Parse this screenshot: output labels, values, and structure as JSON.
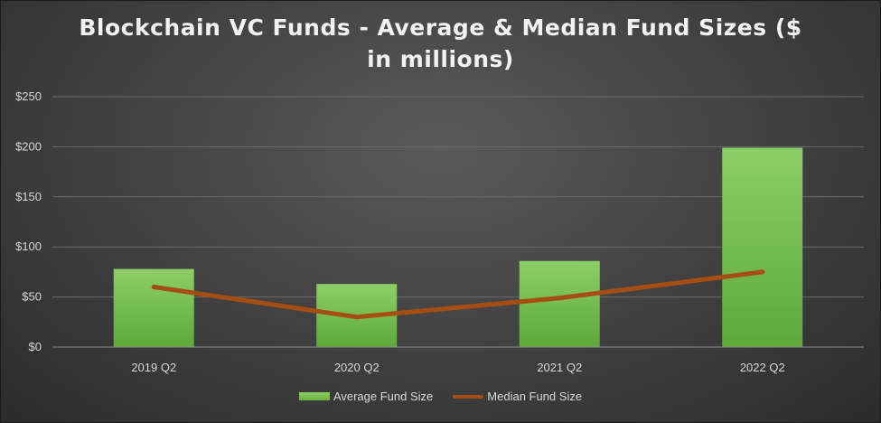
{
  "chart_data": {
    "type": "bar",
    "title_lines": [
      "Blockchain VC Funds - Average & Median Fund Sizes ($",
      "in millions)"
    ],
    "categories": [
      "2019 Q2",
      "2020 Q2",
      "2021 Q2",
      "2022 Q2"
    ],
    "series": [
      {
        "name": "Average Fund Size",
        "kind": "bar",
        "values": [
          78,
          63,
          86,
          199
        ],
        "color": "#72b84a"
      },
      {
        "name": "Median Fund Size",
        "kind": "line",
        "values": [
          60,
          30,
          49,
          75
        ],
        "color": "#a64d14"
      }
    ],
    "yticks": [
      "$0",
      "$50",
      "$100",
      "$150",
      "$200",
      "$250"
    ],
    "ylim": [
      0,
      250
    ],
    "grid": true,
    "legend_position": "bottom"
  }
}
